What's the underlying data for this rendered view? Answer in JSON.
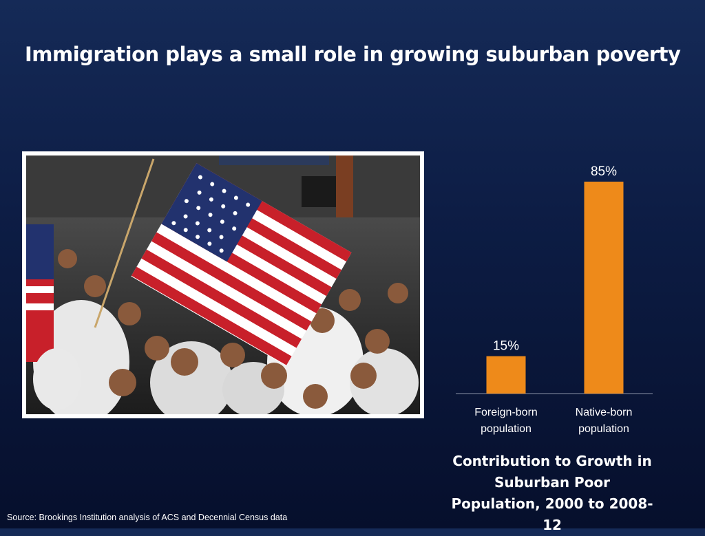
{
  "slide": {
    "title": "Immigration plays a small role in growing suburban poverty",
    "source": "Source: Brookings Institution analysis of ACS and Decennial Census data"
  },
  "colors": {
    "bar": "#ee8a1a",
    "axis": "#8a93a8",
    "text": "#ffffff"
  },
  "chart_data": {
    "type": "bar",
    "title": "Contribution to Growth in Suburban Poor Population, 2000 to 2008-12",
    "categories": [
      [
        "Foreign-born",
        "population"
      ],
      [
        "Native-born",
        "population"
      ]
    ],
    "values": [
      15,
      85
    ],
    "value_labels": [
      "15%",
      "85%"
    ],
    "ylim": [
      0,
      85
    ],
    "grid": false,
    "legend": "none"
  }
}
